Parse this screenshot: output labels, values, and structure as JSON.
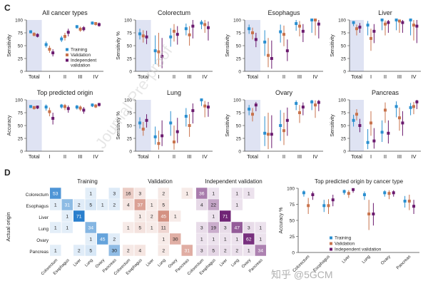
{
  "panels": {
    "c": "C",
    "d": "D"
  },
  "watermarks": [
    "Journal Pre-proof",
    "知乎 @5GCM"
  ],
  "colors": {
    "training": "#2a8fd0",
    "validation": "#c8734d",
    "independent": "#6b1a6e",
    "shade": "#dfe3f3"
  },
  "chart_data": [
    {
      "type": "dotplot",
      "title": "All cancer types",
      "ylabel": "Sensitivity",
      "ylim": [
        0,
        100
      ],
      "yticks": [
        0,
        25,
        50,
        75,
        100
      ],
      "categories": [
        "Total",
        "I",
        "II",
        "III",
        "IV"
      ],
      "shaded": [
        "Total"
      ],
      "legend": [
        "Training",
        "Validation",
        "Independent validation"
      ],
      "series": [
        {
          "name": "Training",
          "values": [
            77,
            52,
            63,
            87,
            94
          ],
          "low": [
            74,
            46,
            57,
            83,
            91
          ],
          "high": [
            80,
            58,
            69,
            90,
            97
          ]
        },
        {
          "name": "Validation",
          "values": [
            72,
            43,
            68,
            82,
            93
          ],
          "low": [
            68,
            36,
            60,
            77,
            89
          ],
          "high": [
            76,
            50,
            75,
            87,
            96
          ]
        },
        {
          "name": "Independent validation",
          "values": [
            70,
            36,
            76,
            83,
            91
          ],
          "low": [
            66,
            29,
            68,
            78,
            87
          ],
          "high": [
            74,
            43,
            83,
            88,
            95
          ]
        }
      ]
    },
    {
      "type": "dotplot",
      "title": "Colorectum",
      "ylabel": "Sensitivity %",
      "ylim": [
        0,
        100
      ],
      "yticks": [
        0,
        25,
        50,
        75,
        100
      ],
      "categories": [
        "Total",
        "I",
        "II",
        "III",
        "IV"
      ],
      "shaded": [
        "Total"
      ],
      "series": [
        {
          "name": "Training",
          "values": [
            73,
            40,
            67,
            83,
            94
          ],
          "low": [
            62,
            14,
            48,
            70,
            82
          ],
          "high": [
            83,
            70,
            84,
            93,
            100
          ]
        },
        {
          "name": "Validation",
          "values": [
            69,
            38,
            78,
            71,
            91
          ],
          "low": [
            56,
            9,
            58,
            50,
            75
          ],
          "high": [
            80,
            75,
            92,
            88,
            100
          ]
        },
        {
          "name": "Independent validation",
          "values": [
            67,
            29,
            72,
            88,
            85
          ],
          "low": [
            53,
            6,
            52,
            64,
            60
          ],
          "high": [
            79,
            65,
            88,
            100,
            97
          ]
        }
      ]
    },
    {
      "type": "dotplot",
      "title": "Esophagus",
      "ylabel": "Sensitivity",
      "ylim": [
        0,
        100
      ],
      "yticks": [
        0,
        25,
        50,
        75,
        100
      ],
      "categories": [
        "Total",
        "I",
        "II",
        "III",
        "IV"
      ],
      "shaded": [
        "Total"
      ],
      "series": [
        {
          "name": "Training",
          "values": [
            83,
            57,
            77,
            93,
            100
          ],
          "low": [
            73,
            30,
            56,
            79,
            75
          ],
          "high": [
            91,
            80,
            91,
            100,
            100
          ]
        },
        {
          "name": "Validation",
          "values": [
            75,
            31,
            72,
            88,
            100
          ],
          "low": [
            62,
            8,
            49,
            68,
            70
          ],
          "high": [
            85,
            65,
            89,
            98,
            100
          ]
        },
        {
          "name": "Independent validation",
          "values": [
            62,
            25,
            40,
            78,
            92
          ],
          "low": [
            47,
            5,
            20,
            57,
            64
          ],
          "high": [
            75,
            60,
            62,
            92,
            100
          ]
        }
      ]
    },
    {
      "type": "dotplot",
      "title": "Liver",
      "ylabel": "Sensitivity",
      "ylim": [
        0,
        100
      ],
      "yticks": [
        0,
        25,
        50,
        75,
        100
      ],
      "categories": [
        "Total",
        "I",
        "II",
        "III",
        "IV"
      ],
      "shaded": [
        "Total"
      ],
      "series": [
        {
          "name": "Training",
          "values": [
            95,
            90,
            100,
            100,
            100
          ],
          "low": [
            88,
            70,
            80,
            80,
            70
          ],
          "high": [
            98,
            98,
            100,
            100,
            100
          ]
        },
        {
          "name": "Validation",
          "values": [
            83,
            64,
            92,
            98,
            90
          ],
          "low": [
            70,
            40,
            70,
            75,
            60
          ],
          "high": [
            91,
            83,
            99,
            100,
            100
          ]
        },
        {
          "name": "Independent validation",
          "values": [
            86,
            78,
            95,
            95,
            88
          ],
          "low": [
            75,
            55,
            75,
            75,
            55
          ],
          "high": [
            94,
            92,
            100,
            100,
            100
          ]
        }
      ]
    },
    {
      "type": "dotplot",
      "title": "Top predicted origin",
      "ylabel": "Accuracy",
      "ylim": [
        0,
        100
      ],
      "yticks": [
        0,
        25,
        50,
        75,
        100
      ],
      "categories": [
        "Total",
        "I",
        "II",
        "III",
        "IV"
      ],
      "shaded": [
        "Total"
      ],
      "series": [
        {
          "name": "Training",
          "values": [
            87,
            86,
            88,
            86,
            90
          ],
          "low": [
            84,
            79,
            83,
            81,
            86
          ],
          "high": [
            89,
            91,
            92,
            90,
            93
          ]
        },
        {
          "name": "Validation",
          "values": [
            85,
            77,
            87,
            84,
            88
          ],
          "low": [
            81,
            68,
            80,
            78,
            84
          ],
          "high": [
            88,
            85,
            92,
            89,
            92
          ]
        },
        {
          "name": "Independent validation",
          "values": [
            86,
            64,
            83,
            80,
            91
          ],
          "low": [
            82,
            52,
            75,
            73,
            87
          ],
          "high": [
            89,
            75,
            89,
            86,
            94
          ]
        }
      ]
    },
    {
      "type": "dotplot",
      "title": "Lung",
      "ylabel": "Sensitivity %",
      "ylim": [
        0,
        100
      ],
      "yticks": [
        0,
        25,
        50,
        75,
        100
      ],
      "categories": [
        "Total",
        "I",
        "II",
        "III",
        "IV"
      ],
      "shaded": [
        "Total"
      ],
      "series": [
        {
          "name": "Training",
          "values": [
            55,
            28,
            55,
            68,
            100
          ],
          "low": [
            44,
            13,
            30,
            48,
            88
          ],
          "high": [
            66,
            48,
            78,
            84,
            100
          ]
        },
        {
          "name": "Validation",
          "values": [
            43,
            15,
            18,
            50,
            88
          ],
          "low": [
            30,
            3,
            3,
            28,
            66
          ],
          "high": [
            57,
            40,
            50,
            72,
            98
          ]
        },
        {
          "name": "Independent validation",
          "values": [
            60,
            30,
            38,
            79,
            86
          ],
          "low": [
            46,
            10,
            16,
            54,
            67
          ],
          "high": [
            72,
            60,
            65,
            93,
            96
          ]
        }
      ]
    },
    {
      "type": "dotplot",
      "title": "Ovary",
      "ylabel": "Sensitivity",
      "ylim": [
        0,
        100
      ],
      "yticks": [
        0,
        25,
        50,
        75,
        100
      ],
      "categories": [
        "Total",
        "I",
        "II",
        "III",
        "IV"
      ],
      "shaded": [
        "Total"
      ],
      "series": [
        {
          "name": "Training",
          "values": [
            82,
            35,
            50,
            93,
            96
          ],
          "low": [
            70,
            10,
            20,
            80,
            80
          ],
          "high": [
            90,
            68,
            80,
            99,
            100
          ]
        },
        {
          "name": "Validation",
          "values": [
            72,
            33,
            40,
            75,
            90
          ],
          "low": [
            58,
            4,
            12,
            55,
            65
          ],
          "high": [
            84,
            75,
            75,
            90,
            99
          ]
        },
        {
          "name": "Independent validation",
          "values": [
            90,
            33,
            60,
            86,
            95
          ],
          "low": [
            78,
            6,
            30,
            70,
            78
          ],
          "high": [
            96,
            70,
            85,
            95,
            100
          ]
        }
      ]
    },
    {
      "type": "dotplot",
      "title": "Pancreas",
      "ylabel": "Sensitivity",
      "ylim": [
        0,
        100
      ],
      "yticks": [
        0,
        25,
        50,
        75,
        100
      ],
      "categories": [
        "Total",
        "I",
        "II",
        "III",
        "IV"
      ],
      "shaded": [
        "Total"
      ],
      "series": [
        {
          "name": "Training",
          "values": [
            60,
            17,
            37,
            87,
            85
          ],
          "low": [
            48,
            4,
            18,
            66,
            70
          ],
          "high": [
            71,
            43,
            60,
            97,
            94
          ]
        },
        {
          "name": "Validation",
          "values": [
            72,
            55,
            80,
            65,
            87
          ],
          "low": [
            60,
            30,
            55,
            40,
            72
          ],
          "high": [
            82,
            78,
            95,
            85,
            96
          ]
        },
        {
          "name": "Independent validation",
          "values": [
            50,
            20,
            35,
            55,
            96
          ],
          "low": [
            37,
            5,
            15,
            30,
            82
          ],
          "high": [
            63,
            45,
            60,
            78,
            100
          ]
        }
      ]
    },
    {
      "type": "heatmap",
      "titles": [
        "Training",
        "Validation",
        "Independent validation"
      ],
      "ylabel": "Actual origin",
      "rows": [
        "Colorectum",
        "Esophagus",
        "Liver",
        "Lung",
        "Ovary",
        "Pancreas"
      ],
      "columns": [
        "Colorectum",
        "Esophagus",
        "Liver",
        "Lung",
        "Ovary",
        "Pancreas"
      ],
      "matrices": [
        [
          [
            53,
            0,
            0,
            1,
            0,
            3
          ],
          [
            1,
            31,
            2,
            5,
            1,
            2
          ],
          [
            0,
            1,
            71,
            0,
            0,
            0
          ],
          [
            1,
            1,
            0,
            34,
            0,
            0
          ],
          [
            0,
            0,
            0,
            1,
            45,
            2
          ],
          [
            1,
            0,
            2,
            5,
            0,
            30
          ]
        ],
        [
          [
            16,
            3,
            0,
            2,
            0,
            1
          ],
          [
            4,
            37,
            1,
            5,
            0,
            0
          ],
          [
            0,
            1,
            2,
            45,
            1,
            0
          ],
          [
            1,
            5,
            1,
            11,
            0,
            0
          ],
          [
            0,
            0,
            0,
            1,
            30,
            0
          ],
          [
            2,
            4,
            0,
            2,
            0,
            31
          ]
        ],
        [
          [
            36,
            1,
            0,
            1,
            1,
            0
          ],
          [
            4,
            22,
            0,
            1,
            0,
            0
          ],
          [
            0,
            1,
            71,
            0,
            0,
            0
          ],
          [
            3,
            19,
            3,
            47,
            3,
            1
          ],
          [
            1,
            1,
            1,
            1,
            62,
            1
          ],
          [
            3,
            5,
            2,
            2,
            1,
            34
          ]
        ]
      ]
    },
    {
      "type": "dotplot",
      "title": "Top predicted origin by cancer type",
      "ylabel": "Accuracy %",
      "ylim": [
        0,
        100
      ],
      "yticks": [
        0,
        25,
        50,
        75,
        100
      ],
      "categories": [
        "Colorectum",
        "Esophagus",
        "Liver",
        "Lung",
        "Ovary",
        "Pancreas"
      ],
      "legend": [
        "Training",
        "Validation",
        "Independent validation"
      ],
      "series": [
        {
          "name": "Training",
          "values": [
            93,
            73,
            95,
            90,
            93,
            80
          ],
          "low": [
            87,
            63,
            90,
            82,
            87,
            70
          ],
          "high": [
            97,
            82,
            98,
            95,
            97,
            88
          ]
        },
        {
          "name": "Validation",
          "values": [
            73,
            73,
            92,
            60,
            92,
            80
          ],
          "low": [
            60,
            60,
            85,
            35,
            83,
            66
          ],
          "high": [
            85,
            83,
            97,
            82,
            97,
            90
          ]
        },
        {
          "name": "Independent validation",
          "values": [
            90,
            82,
            98,
            60,
            93,
            72
          ],
          "low": [
            82,
            72,
            93,
            42,
            87,
            60
          ],
          "high": [
            95,
            90,
            100,
            77,
            97,
            82
          ]
        }
      ]
    }
  ]
}
